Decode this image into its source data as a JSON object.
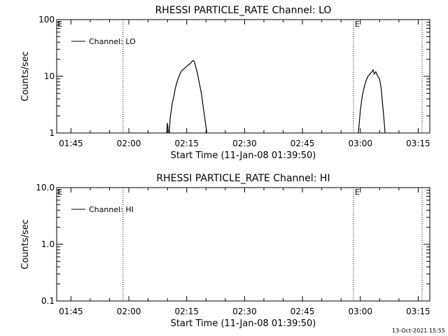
{
  "footer_timestamp": "13-Oct-2021 15:55",
  "colors": {
    "axis": "#000000",
    "line": "#000000",
    "background": "#ffffff"
  },
  "chart_data": [
    {
      "type": "line",
      "title": "RHESSI PARTICLE_RATE Channel: LO",
      "xlabel": "Start Time (11-Jan-08 01:39:50)",
      "ylabel": "Counts/sec",
      "y_scale": "log",
      "ylim": [
        1,
        100
      ],
      "yticks": [
        1,
        10,
        100
      ],
      "ytick_labels": [
        "1",
        "10",
        "100"
      ],
      "xlim_minutes": [
        1.3,
        98.0
      ],
      "xticks_minutes": [
        5,
        20,
        35,
        50,
        65,
        80,
        95
      ],
      "xtick_labels": [
        "01:45",
        "02:00",
        "02:15",
        "02:30",
        "02:45",
        "03:00",
        "03:15"
      ],
      "legend": {
        "label": "Channel: LO",
        "placement": "top-left"
      },
      "markers": [
        {
          "minute": 18.5,
          "label": ""
        },
        {
          "minute": 78.2,
          "label": "E"
        },
        {
          "minute": 96.0,
          "label": ""
        }
      ],
      "corner_label": "E",
      "series": [
        {
          "name": "Channel: LO",
          "segments": [
            [
              [
                29.8,
                1
              ],
              [
                30.0,
                1.5
              ],
              [
                30.2,
                1.1
              ],
              [
                30.5,
                1.0
              ],
              [
                30.7,
                1.8
              ],
              [
                31.0,
                2.5
              ],
              [
                31.3,
                3.5
              ],
              [
                31.7,
                4.5
              ],
              [
                32.0,
                6.0
              ],
              [
                32.5,
                8.0
              ],
              [
                33.0,
                10
              ],
              [
                33.5,
                12
              ],
              [
                34.0,
                13
              ],
              [
                34.5,
                14
              ],
              [
                35.0,
                15
              ],
              [
                35.5,
                16
              ],
              [
                36.0,
                17
              ],
              [
                36.3,
                18
              ],
              [
                36.6,
                19
              ],
              [
                37.0,
                18
              ],
              [
                37.3,
                15
              ],
              [
                37.7,
                12
              ],
              [
                38.2,
                8
              ],
              [
                38.8,
                5
              ],
              [
                39.4,
                2.5
              ],
              [
                40.0,
                1.3
              ],
              [
                40.2,
                1
              ]
            ],
            [
              [
                79.5,
                1
              ],
              [
                80.0,
                2.5
              ],
              [
                80.5,
                4.5
              ],
              [
                81.0,
                6.5
              ],
              [
                81.5,
                8.5
              ],
              [
                82.0,
                10
              ],
              [
                82.5,
                11
              ],
              [
                83.0,
                12
              ],
              [
                83.3,
                13
              ],
              [
                83.6,
                11
              ],
              [
                84.0,
                12
              ],
              [
                84.5,
                10
              ],
              [
                85.0,
                9
              ],
              [
                85.4,
                6
              ],
              [
                85.8,
                3
              ],
              [
                86.2,
                1.5
              ],
              [
                86.4,
                1
              ]
            ]
          ]
        }
      ]
    },
    {
      "type": "line",
      "title": "RHESSI PARTICLE_RATE Channel: HI",
      "xlabel": "Start Time (11-Jan-08 01:39:50)",
      "ylabel": "Counts/sec",
      "y_scale": "log",
      "ylim": [
        0.1,
        10
      ],
      "yticks": [
        0.1,
        1,
        10
      ],
      "ytick_labels": [
        "0.1",
        "1.0",
        "10.0"
      ],
      "xlim_minutes": [
        1.3,
        98.0
      ],
      "xticks_minutes": [
        5,
        20,
        35,
        50,
        65,
        80,
        95
      ],
      "xtick_labels": [
        "01:45",
        "02:00",
        "02:15",
        "02:30",
        "02:45",
        "03:00",
        "03:15"
      ],
      "legend": {
        "label": "Channel: HI",
        "placement": "top-left"
      },
      "markers": [
        {
          "minute": 18.5,
          "label": ""
        },
        {
          "minute": 78.2,
          "label": "E"
        },
        {
          "minute": 96.0,
          "label": ""
        }
      ],
      "corner_label": "E",
      "series": [
        {
          "name": "Channel: HI",
          "segments": []
        }
      ]
    }
  ]
}
